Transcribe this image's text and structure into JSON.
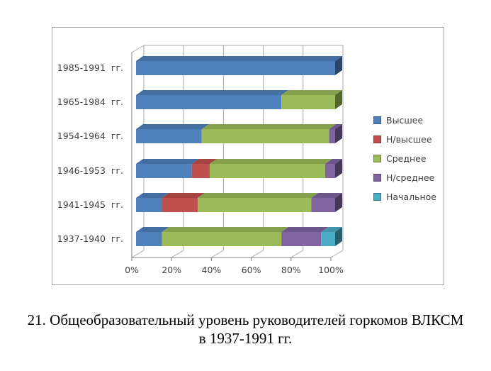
{
  "caption": {
    "line1": "21. Общеобразовательный уровень руководителей горкомов ВЛКСМ",
    "line2": "в 1937-1991 гг."
  },
  "chart_data": {
    "type": "bar",
    "orientation": "horizontal",
    "stacked": true,
    "style": "3d",
    "units": "percent",
    "categories": [
      "1985-1991  гг.",
      "1965-1984  гг.",
      "1954-1964  гг.",
      "1946-1953  гг.",
      "1941-1945  гг.",
      "1937-1940  гг."
    ],
    "series": [
      {
        "name": "Высшее",
        "color": "#4F81BD",
        "values": [
          100,
          73,
          33,
          28,
          13,
          13
        ]
      },
      {
        "name": "Н/высшее",
        "color": "#C0504D",
        "values": [
          0,
          0,
          0,
          9,
          18,
          0
        ]
      },
      {
        "name": "Среднее",
        "color": "#9BBB59",
        "values": [
          0,
          27,
          64,
          58,
          57,
          60
        ]
      },
      {
        "name": "Н/среднее",
        "color": "#8064A2",
        "values": [
          0,
          0,
          3,
          5,
          12,
          20
        ]
      },
      {
        "name": "Начальное",
        "color": "#4BACC6",
        "values": [
          0,
          0,
          0,
          0,
          0,
          7
        ]
      }
    ],
    "x_ticks": [
      "0%",
      "20%",
      "40%",
      "60%",
      "80%",
      "100%"
    ],
    "xlim": [
      0,
      100
    ],
    "grid": true,
    "legend_position": "right",
    "grid_color": "#a8a8a8",
    "axis_color": "#808080"
  }
}
